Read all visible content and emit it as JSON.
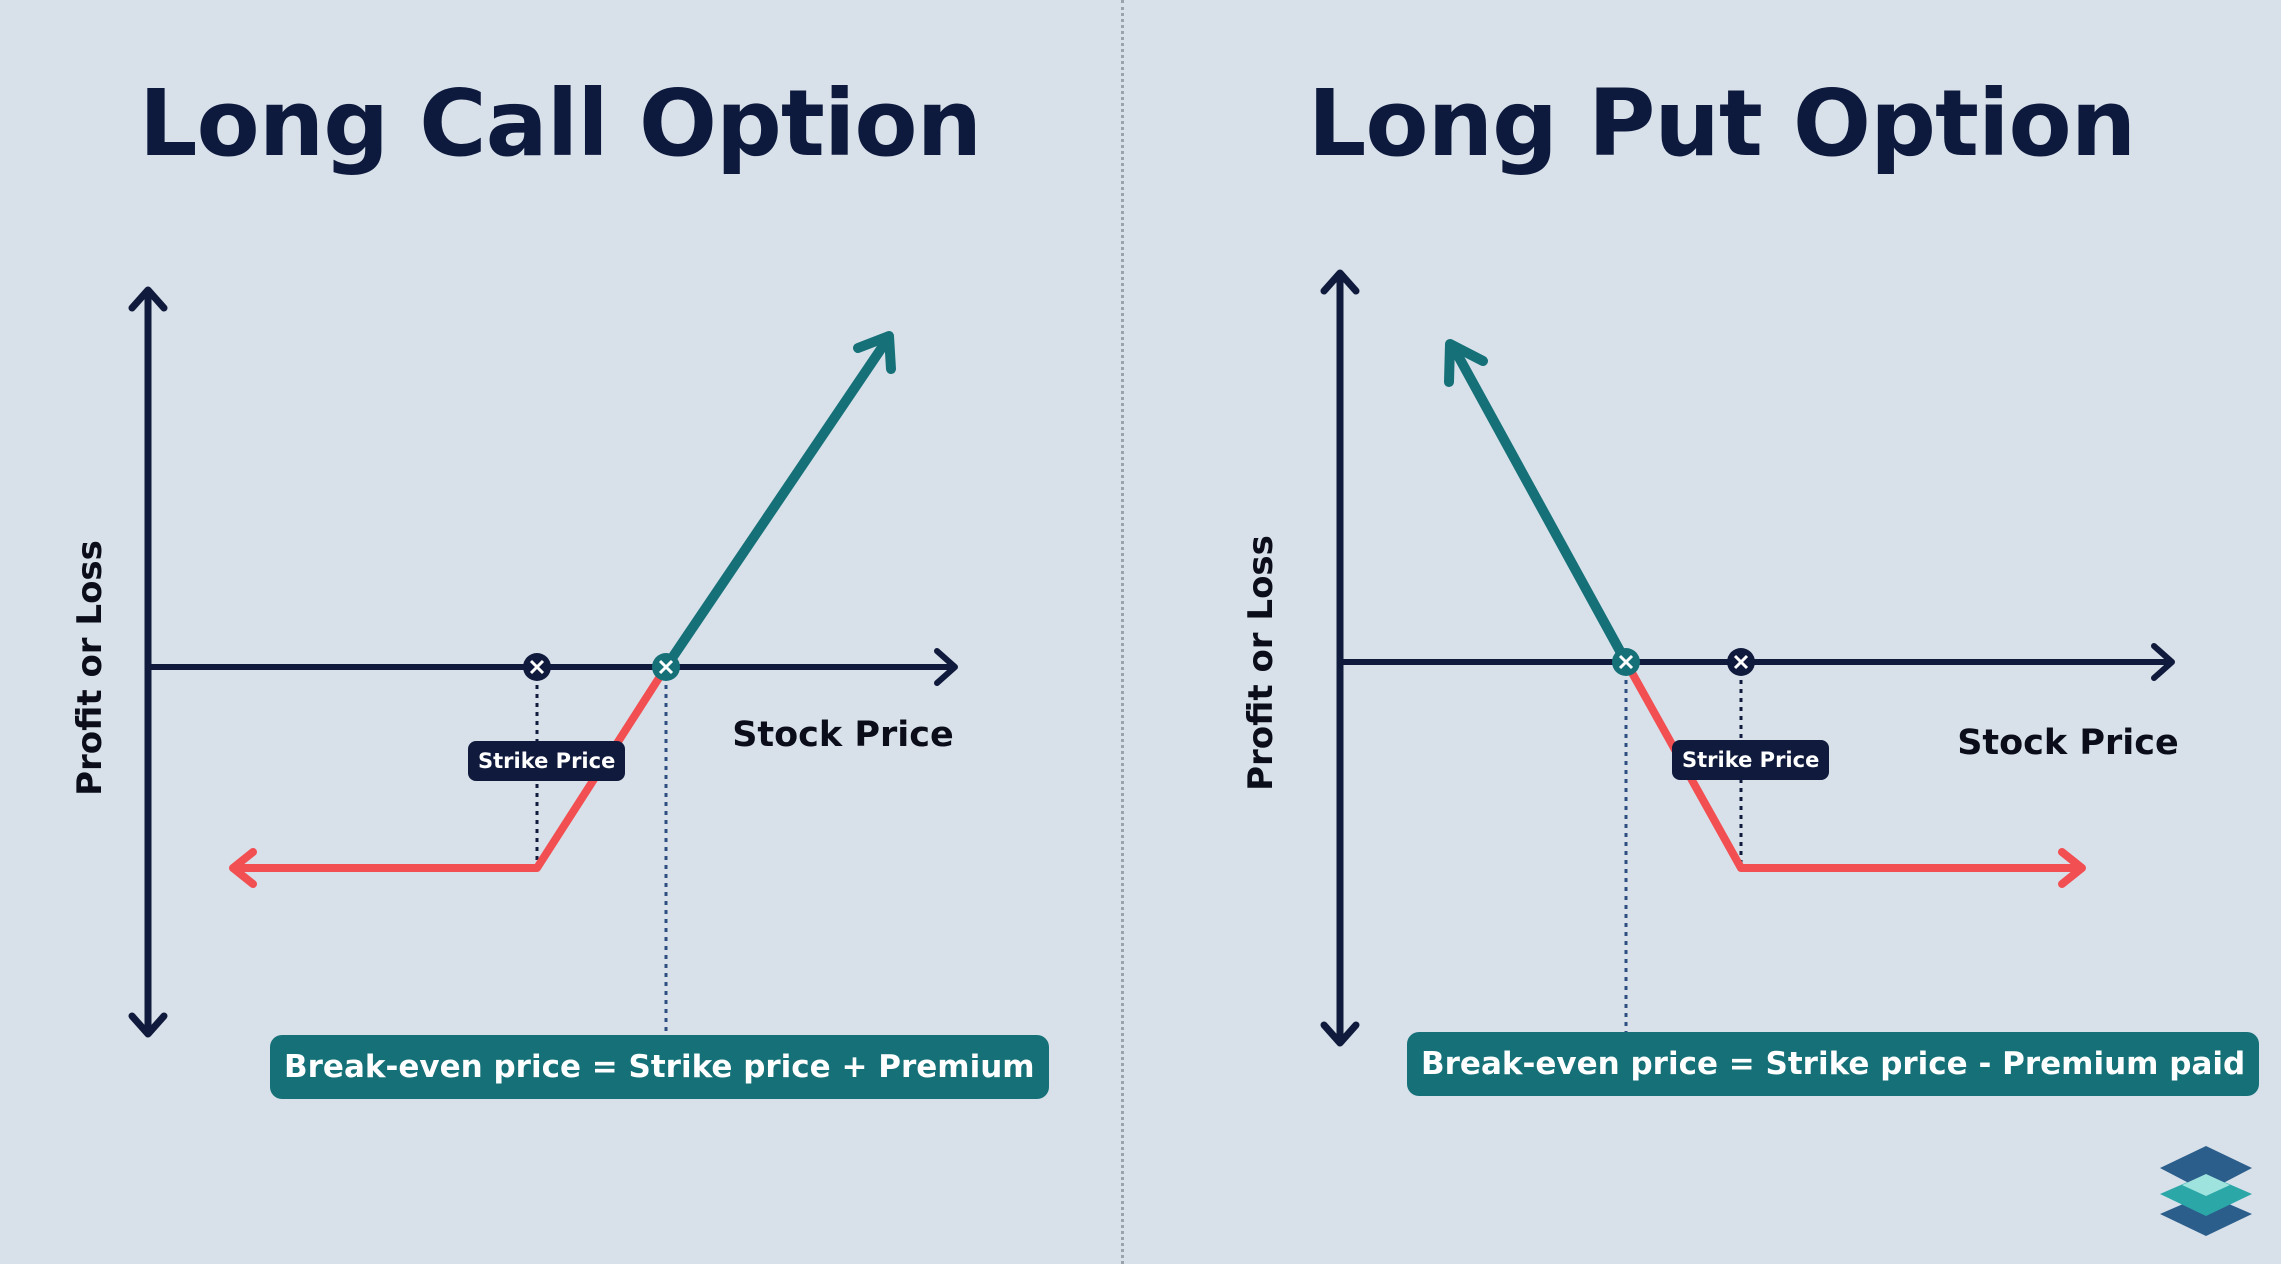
{
  "colors": {
    "background": "#d8e1ea",
    "axis": "#101a3c",
    "profit_line": "#157078",
    "loss_line": "#f24f52",
    "badge_bg": "#157078",
    "tag_bg": "#101a3c"
  },
  "left": {
    "title": "Long Call Option",
    "y_axis_label": "Profit or Loss",
    "x_axis_label": "Stock Price",
    "strike_tag": "Strike Price",
    "formula": "Break-even price = Strike price + Premium"
  },
  "right": {
    "title": "Long Put Option",
    "y_axis_label": "Profit or Loss",
    "x_axis_label": "Stock Price",
    "strike_tag": "Strike Price",
    "formula": "Break-even price = Strike price - Premium paid"
  },
  "icons": {
    "logo": "layered-diamond-logo",
    "marker": "x-circle-icon"
  }
}
